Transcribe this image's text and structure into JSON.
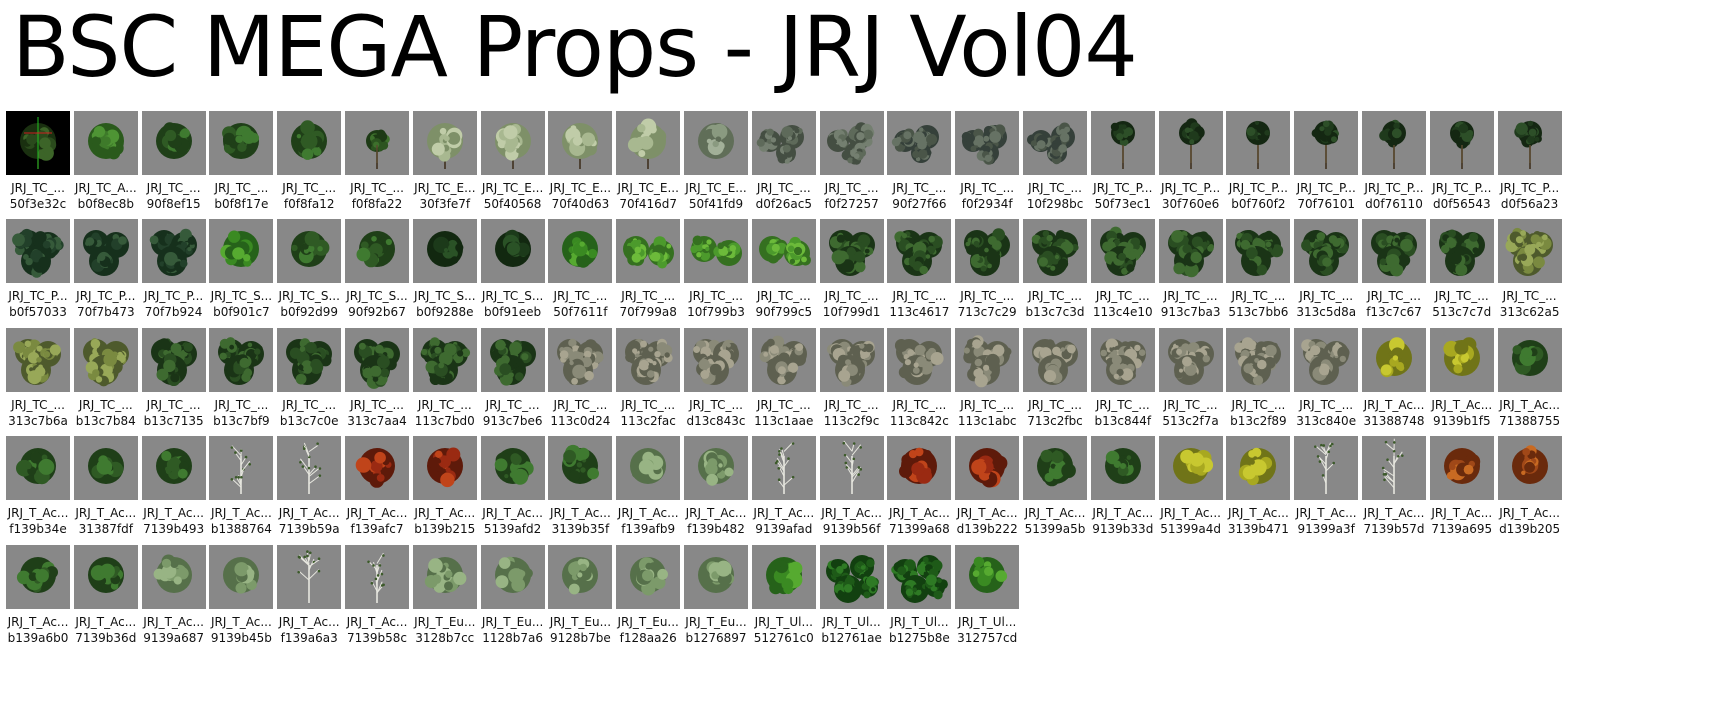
{
  "title": "BSC MEGA Props - JRJ Vol04",
  "rows": [
    [
      {
        "name": "JRJ_TC_...",
        "hash": "50f3e32c",
        "kind": "selected"
      },
      {
        "name": "JRJ_TC_A...",
        "hash": "b0f8ec8b",
        "kind": "bush"
      },
      {
        "name": "JRJ_TC_...",
        "hash": "90f8ef15",
        "kind": "tree"
      },
      {
        "name": "JRJ_TC_...",
        "hash": "b0f8f17e",
        "kind": "tree"
      },
      {
        "name": "JRJ_TC_...",
        "hash": "f0f8fa12",
        "kind": "tree"
      },
      {
        "name": "JRJ_TC_...",
        "hash": "f0f8fa22",
        "kind": "tall"
      },
      {
        "name": "JRJ_TC_E...",
        "hash": "30f3fe7f",
        "kind": "birch"
      },
      {
        "name": "JRJ_TC_E...",
        "hash": "50f40568",
        "kind": "birch"
      },
      {
        "name": "JRJ_TC_E...",
        "hash": "70f40d63",
        "kind": "birch"
      },
      {
        "name": "JRJ_TC_E...",
        "hash": "70f416d7",
        "kind": "birch"
      },
      {
        "name": "JRJ_TC_E...",
        "hash": "50f41fd9",
        "kind": "shrub"
      },
      {
        "name": "JRJ_TC_...",
        "hash": "d0f26ac5",
        "kind": "flatgrey"
      },
      {
        "name": "JRJ_TC_...",
        "hash": "f0f27257",
        "kind": "flatgrey"
      },
      {
        "name": "JRJ_TC_...",
        "hash": "90f27f66",
        "kind": "patch"
      },
      {
        "name": "JRJ_TC_...",
        "hash": "f0f2934f",
        "kind": "patch"
      },
      {
        "name": "JRJ_TC_...",
        "hash": "10f298bc",
        "kind": "patch"
      },
      {
        "name": "JRJ_TC_P...",
        "hash": "50f73ec1",
        "kind": "palm"
      },
      {
        "name": "JRJ_TC_P...",
        "hash": "30f760e6",
        "kind": "palm"
      },
      {
        "name": "JRJ_TC_P...",
        "hash": "b0f760f2",
        "kind": "palm"
      },
      {
        "name": "JRJ_TC_P...",
        "hash": "70f76101",
        "kind": "palm"
      },
      {
        "name": "JRJ_TC_P...",
        "hash": "d0f76110",
        "kind": "palm"
      },
      {
        "name": "JRJ_TC_P...",
        "hash": "d0f56543",
        "kind": "palm"
      },
      {
        "name": "JRJ_TC_P...",
        "hash": "d0f56a23",
        "kind": "palm"
      }
    ],
    [
      {
        "name": "JRJ_TC_P...",
        "hash": "b0f57033",
        "kind": "palmgroup"
      },
      {
        "name": "JRJ_TC_P...",
        "hash": "70f7b473",
        "kind": "palmgroup"
      },
      {
        "name": "JRJ_TC_P...",
        "hash": "70f7b924",
        "kind": "palmgroup"
      },
      {
        "name": "JRJ_TC_S...",
        "hash": "b0f901c7",
        "kind": "bright"
      },
      {
        "name": "JRJ_TC_S...",
        "hash": "b0f92d99",
        "kind": "tree"
      },
      {
        "name": "JRJ_TC_S...",
        "hash": "90f92b67",
        "kind": "tree"
      },
      {
        "name": "JRJ_TC_S...",
        "hash": "b0f9288e",
        "kind": "dark"
      },
      {
        "name": "JRJ_TC_S...",
        "hash": "b0f91eeb",
        "kind": "dark"
      },
      {
        "name": "JRJ_TC_...",
        "hash": "50f7611f",
        "kind": "bright"
      },
      {
        "name": "JRJ_TC_...",
        "hash": "70f799a8",
        "kind": "pair"
      },
      {
        "name": "JRJ_TC_...",
        "hash": "10f799b3",
        "kind": "pair"
      },
      {
        "name": "JRJ_TC_...",
        "hash": "90f799c5",
        "kind": "pair"
      },
      {
        "name": "JRJ_TC_...",
        "hash": "10f799d1",
        "kind": "cluster"
      },
      {
        "name": "JRJ_TC_...",
        "hash": "113c4617",
        "kind": "cluster"
      },
      {
        "name": "JRJ_TC_...",
        "hash": "713c7c29",
        "kind": "cluster"
      },
      {
        "name": "JRJ_TC_...",
        "hash": "b13c7c3d",
        "kind": "cluster"
      },
      {
        "name": "JRJ_TC_...",
        "hash": "113c4e10",
        "kind": "cluster"
      },
      {
        "name": "JRJ_TC_...",
        "hash": "913c7ba3",
        "kind": "cluster"
      },
      {
        "name": "JRJ_TC_...",
        "hash": "513c7bb6",
        "kind": "cluster"
      },
      {
        "name": "JRJ_TC_...",
        "hash": "313c5d8a",
        "kind": "cluster"
      },
      {
        "name": "JRJ_TC_...",
        "hash": "f13c7c67",
        "kind": "cluster"
      },
      {
        "name": "JRJ_TC_...",
        "hash": "513c7c7d",
        "kind": "cluster"
      },
      {
        "name": "JRJ_TC_...",
        "hash": "313c62a5",
        "kind": "olive"
      }
    ],
    [
      {
        "name": "JRJ_TC_...",
        "hash": "313c7b6a",
        "kind": "olive"
      },
      {
        "name": "JRJ_TC_...",
        "hash": "b13c7b84",
        "kind": "olive"
      },
      {
        "name": "JRJ_TC_...",
        "hash": "b13c7135",
        "kind": "cluster"
      },
      {
        "name": "JRJ_TC_...",
        "hash": "b13c7bf9",
        "kind": "cluster"
      },
      {
        "name": "JRJ_TC_...",
        "hash": "b13c7c0e",
        "kind": "cluster"
      },
      {
        "name": "JRJ_TC_...",
        "hash": "313c7aa4",
        "kind": "cluster"
      },
      {
        "name": "JRJ_TC_...",
        "hash": "113c7bd0",
        "kind": "cluster"
      },
      {
        "name": "JRJ_TC_...",
        "hash": "913c7be6",
        "kind": "cluster"
      },
      {
        "name": "JRJ_TC_...",
        "hash": "113c0d24",
        "kind": "mixed"
      },
      {
        "name": "JRJ_TC_...",
        "hash": "113c2fac",
        "kind": "mixed"
      },
      {
        "name": "JRJ_TC_...",
        "hash": "d13c843c",
        "kind": "mixed"
      },
      {
        "name": "JRJ_TC_...",
        "hash": "113c1aae",
        "kind": "mixed"
      },
      {
        "name": "JRJ_TC_...",
        "hash": "113c2f9c",
        "kind": "mixed"
      },
      {
        "name": "JRJ_TC_...",
        "hash": "113c842c",
        "kind": "mixed"
      },
      {
        "name": "JRJ_TC_...",
        "hash": "113c1abc",
        "kind": "mixed"
      },
      {
        "name": "JRJ_TC_...",
        "hash": "713c2fbc",
        "kind": "mixed"
      },
      {
        "name": "JRJ_TC_...",
        "hash": "b13c844f",
        "kind": "mixed"
      },
      {
        "name": "JRJ_TC_...",
        "hash": "513c2f7a",
        "kind": "mixed"
      },
      {
        "name": "JRJ_TC_...",
        "hash": "b13c2f89",
        "kind": "mixed"
      },
      {
        "name": "JRJ_TC_...",
        "hash": "313c840e",
        "kind": "mixed"
      },
      {
        "name": "JRJ_T_Ac...",
        "hash": "31388748",
        "kind": "yellow"
      },
      {
        "name": "JRJ_T_Ac...",
        "hash": "9139b1f5",
        "kind": "yellow"
      },
      {
        "name": "JRJ_T_Ac...",
        "hash": "71388755",
        "kind": "tree"
      }
    ],
    [
      {
        "name": "JRJ_T_Ac...",
        "hash": "f139b34e",
        "kind": "tree"
      },
      {
        "name": "JRJ_T_Ac...",
        "hash": "31387fdf",
        "kind": "tree"
      },
      {
        "name": "JRJ_T_Ac...",
        "hash": "7139b493",
        "kind": "tree"
      },
      {
        "name": "JRJ_T_Ac...",
        "hash": "b1388764",
        "kind": "bare"
      },
      {
        "name": "JRJ_T_Ac...",
        "hash": "7139b59a",
        "kind": "bare"
      },
      {
        "name": "JRJ_T_Ac...",
        "hash": "f139afc7",
        "kind": "red"
      },
      {
        "name": "JRJ_T_Ac...",
        "hash": "b139b215",
        "kind": "red"
      },
      {
        "name": "JRJ_T_Ac...",
        "hash": "5139afd2",
        "kind": "tree"
      },
      {
        "name": "JRJ_T_Ac...",
        "hash": "3139b35f",
        "kind": "tree"
      },
      {
        "name": "JRJ_T_Ac...",
        "hash": "f139afb9",
        "kind": "pale"
      },
      {
        "name": "JRJ_T_Ac...",
        "hash": "f139b482",
        "kind": "pale"
      },
      {
        "name": "JRJ_T_Ac...",
        "hash": "9139afad",
        "kind": "bare"
      },
      {
        "name": "JRJ_T_Ac...",
        "hash": "9139b56f",
        "kind": "bare"
      },
      {
        "name": "JRJ_T_Ac...",
        "hash": "71399a68",
        "kind": "red"
      },
      {
        "name": "JRJ_T_Ac...",
        "hash": "d139b222",
        "kind": "red"
      },
      {
        "name": "JRJ_T_Ac...",
        "hash": "51399a5b",
        "kind": "tree"
      },
      {
        "name": "JRJ_T_Ac...",
        "hash": "9139b33d",
        "kind": "tree"
      },
      {
        "name": "JRJ_T_Ac...",
        "hash": "51399a4d",
        "kind": "yellow"
      },
      {
        "name": "JRJ_T_Ac...",
        "hash": "3139b471",
        "kind": "yellow"
      },
      {
        "name": "JRJ_T_Ac...",
        "hash": "91399a3f",
        "kind": "bare"
      },
      {
        "name": "JRJ_T_Ac...",
        "hash": "7139b57d",
        "kind": "bare"
      },
      {
        "name": "JRJ_T_Ac...",
        "hash": "7139a695",
        "kind": "orange"
      },
      {
        "name": "JRJ_T_Ac...",
        "hash": "d139b205",
        "kind": "orange"
      }
    ],
    [
      {
        "name": "JRJ_T_Ac...",
        "hash": "b139a6b0",
        "kind": "tree"
      },
      {
        "name": "JRJ_T_Ac...",
        "hash": "7139b36d",
        "kind": "tree"
      },
      {
        "name": "JRJ_T_Ac...",
        "hash": "9139a687",
        "kind": "pale"
      },
      {
        "name": "JRJ_T_Ac...",
        "hash": "9139b45b",
        "kind": "pale"
      },
      {
        "name": "JRJ_T_Ac...",
        "hash": "f139a6a3",
        "kind": "bare"
      },
      {
        "name": "JRJ_T_Ac...",
        "hash": "7139b58c",
        "kind": "bare"
      },
      {
        "name": "JRJ_T_Eu...",
        "hash": "3128b7cc",
        "kind": "pale"
      },
      {
        "name": "JRJ_T_Eu...",
        "hash": "1128b7a6",
        "kind": "pale"
      },
      {
        "name": "JRJ_T_Eu...",
        "hash": "9128b7be",
        "kind": "pale"
      },
      {
        "name": "JRJ_T_Eu...",
        "hash": "f128aa26",
        "kind": "pale"
      },
      {
        "name": "JRJ_T_Eu...",
        "hash": "b1276897",
        "kind": "pale"
      },
      {
        "name": "JRJ_T_Ul...",
        "hash": "512761c0",
        "kind": "bright"
      },
      {
        "name": "JRJ_T_Ul...",
        "hash": "b12761ae",
        "kind": "ring"
      },
      {
        "name": "JRJ_T_Ul...",
        "hash": "b1275b8e",
        "kind": "ring"
      },
      {
        "name": "JRJ_T_Ul...",
        "hash": "312757cd",
        "kind": "bright"
      }
    ]
  ],
  "kind_colors": {
    "tree": [
      "#2f5a24",
      "#3f7a30",
      "#1f3f18"
    ],
    "tall": [
      "#2c5420",
      "#3d702c",
      "#1d3a15"
    ],
    "bush": [
      "#3e7a2a",
      "#4e9434",
      "#2a5a1c"
    ],
    "birch": [
      "#a8b890",
      "#c0cca8",
      "#7e9068"
    ],
    "shrub": [
      "#8a9a80",
      "#a2b098",
      "#606e58"
    ],
    "flatgrey": [
      "#5e6a5a",
      "#747f70",
      "#444e42"
    ],
    "patch": [
      "#4a5548",
      "#667264",
      "#35403a"
    ],
    "palm": [
      "#1f3a1c",
      "#2d4f28",
      "#142712"
    ],
    "palmgroup": [
      "#22402a",
      "#365a3a",
      "#16301c"
    ],
    "bright": [
      "#3a8a22",
      "#56aa30",
      "#26621a"
    ],
    "dark": [
      "#1c3a1a",
      "#2a5226",
      "#122810"
    ],
    "pair": [
      "#4c9a2c",
      "#6cba3a",
      "#357020"
    ],
    "cluster": [
      "#2a4e22",
      "#3e6a30",
      "#1a3416"
    ],
    "olive": [
      "#7a8a40",
      "#98a858",
      "#4e5a2c"
    ],
    "mixed": [
      "#8a8a78",
      "#a8a490",
      "#5e6050"
    ],
    "yellow": [
      "#a8a820",
      "#c8c830",
      "#707418"
    ],
    "red": [
      "#9a2a12",
      "#c0441a",
      "#5e1a0a"
    ],
    "orange": [
      "#a04818",
      "#c86a22",
      "#6a2a0c"
    ],
    "pale": [
      "#7c9a6a",
      "#98b484",
      "#56704a"
    ],
    "bare": [
      "#d0d0c8",
      "#e8e8e0",
      "#909088"
    ],
    "ring": [
      "#1e5a18",
      "#2e7a24",
      "#124010"
    ],
    "selected": [
      "#2a4a1c",
      "#3c6428",
      "#1a3010"
    ]
  }
}
